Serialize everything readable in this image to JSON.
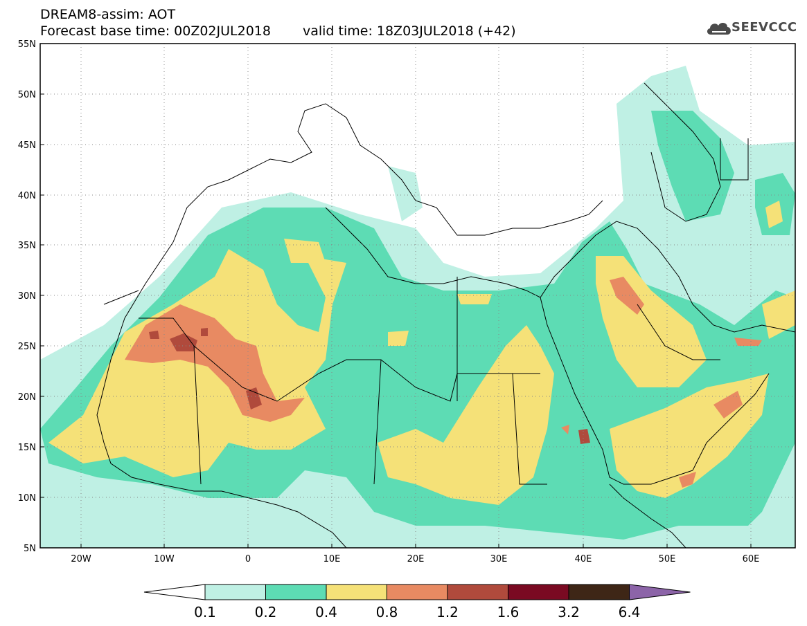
{
  "header": {
    "title_line1": "DREAM8-assim: AOT",
    "base_time": "Forecast base time: 00Z02JUL2018",
    "valid_time": "valid time: 18Z03JUL2018 (+42)"
  },
  "logo": {
    "text": "SEEVCCC",
    "icon": "cloud-icon",
    "color": "#4a4a4a"
  },
  "map": {
    "lon_labels": [
      "20W",
      "10W",
      "0",
      "10E",
      "20E",
      "30E",
      "40E",
      "50E",
      "60E"
    ],
    "lat_labels": [
      "55N",
      "50N",
      "45N",
      "40N",
      "35N",
      "30N",
      "25N",
      "20N",
      "15N",
      "10N",
      "5N"
    ]
  },
  "colorbar": {
    "labels": [
      "0.1",
      "0.2",
      "0.4",
      "0.8",
      "1.2",
      "1.6",
      "3.2",
      "6.4"
    ],
    "colors": [
      "#ffffff",
      "#bff0e4",
      "#5ddcb4",
      "#f5e178",
      "#e88a62",
      "#b04a3c",
      "#7a0a22",
      "#3e2616",
      "#8c64a8"
    ]
  }
}
